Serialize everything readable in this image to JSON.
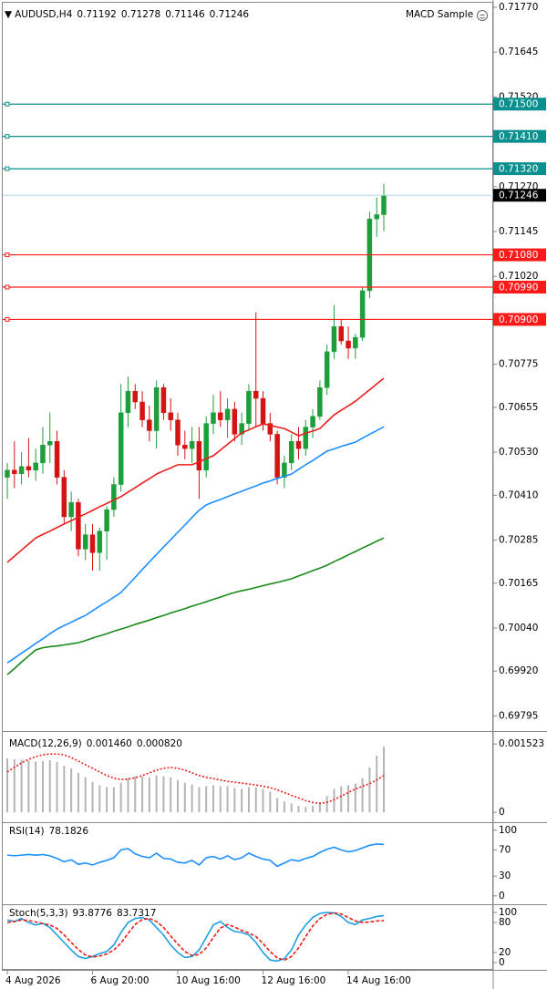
{
  "chart_data": [
    {
      "type": "candlestick",
      "title": "AUDUSD,H4",
      "expert": "MACD Sample",
      "categories": [
        "4 Aug 2026",
        null,
        null,
        null,
        null,
        null,
        null,
        null,
        null,
        null,
        null,
        null,
        "6 Aug 20:00",
        null,
        null,
        null,
        null,
        null,
        null,
        null,
        null,
        null,
        null,
        null,
        "10 Aug 16:00",
        null,
        null,
        null,
        null,
        null,
        null,
        null,
        null,
        null,
        null,
        null,
        "12 Aug 16:00",
        null,
        null,
        null,
        null,
        null,
        null,
        null,
        null,
        null,
        null,
        null,
        "14 Aug 16:00",
        null,
        null,
        null,
        null,
        null
      ],
      "open": [
        0.7046,
        0.7048,
        0.7047,
        0.7049,
        0.7048,
        0.705,
        0.7055,
        0.7056,
        0.7046,
        0.7035,
        0.7039,
        0.7026,
        0.703,
        0.7025,
        0.7031,
        0.7037,
        0.7044,
        0.7064,
        0.707,
        0.7067,
        0.7062,
        0.7059,
        0.7071,
        0.7064,
        0.7062,
        0.7055,
        0.7054,
        0.7056,
        0.7048,
        0.7061,
        0.7064,
        0.7062,
        0.7065,
        0.7058,
        0.7061,
        0.707,
        0.7068,
        0.7061,
        0.7058,
        0.7046,
        0.705,
        0.7056,
        0.7054,
        0.706,
        0.7063,
        0.7071,
        0.7081,
        0.7088,
        0.7084,
        0.7082,
        0.7085,
        0.7098,
        0.7118,
        0.71192
      ],
      "high": [
        0.705,
        0.7056,
        0.7053,
        0.7057,
        0.7054,
        0.706,
        0.7064,
        0.7059,
        0.7048,
        0.7042,
        0.704,
        0.7033,
        0.7033,
        0.7032,
        0.7038,
        0.7046,
        0.7072,
        0.7074,
        0.7072,
        0.707,
        0.7066,
        0.7073,
        0.7072,
        0.7068,
        0.7064,
        0.7059,
        0.706,
        0.706,
        0.7063,
        0.7069,
        0.707,
        0.7068,
        0.7067,
        0.7064,
        0.7072,
        0.7092,
        0.707,
        0.7064,
        0.7059,
        0.7052,
        0.7058,
        0.706,
        0.7062,
        0.7065,
        0.7073,
        0.7083,
        0.7094,
        0.709,
        0.7088,
        0.7086,
        0.7099,
        0.712,
        0.7124,
        0.71278
      ],
      "low": [
        0.704,
        0.7043,
        0.7044,
        0.7046,
        0.7045,
        0.7047,
        0.705,
        0.7044,
        0.7033,
        0.7031,
        0.7024,
        0.7023,
        0.702,
        0.702,
        0.7023,
        0.7035,
        0.7042,
        0.706,
        0.7065,
        0.706,
        0.7056,
        0.7054,
        0.7062,
        0.7059,
        0.7052,
        0.7051,
        0.705,
        0.704,
        0.7046,
        0.7058,
        0.706,
        0.7057,
        0.7056,
        0.7055,
        0.7059,
        0.706,
        0.7059,
        0.7056,
        0.7044,
        0.7043,
        0.7048,
        0.7051,
        0.7052,
        0.7057,
        0.7062,
        0.7069,
        0.7079,
        0.7083,
        0.7079,
        0.7079,
        0.7084,
        0.7096,
        0.7113,
        0.71146
      ],
      "close": [
        0.7048,
        0.7047,
        0.7049,
        0.7048,
        0.705,
        0.7055,
        0.7056,
        0.7046,
        0.7035,
        0.7039,
        0.7026,
        0.703,
        0.7025,
        0.7031,
        0.7037,
        0.7044,
        0.7064,
        0.707,
        0.7067,
        0.7062,
        0.7059,
        0.7071,
        0.7064,
        0.7062,
        0.7055,
        0.7054,
        0.7056,
        0.7048,
        0.7061,
        0.7064,
        0.7062,
        0.7065,
        0.7058,
        0.7061,
        0.707,
        0.7068,
        0.7061,
        0.7058,
        0.7046,
        0.705,
        0.7056,
        0.7054,
        0.706,
        0.7063,
        0.7071,
        0.7081,
        0.7088,
        0.7084,
        0.7082,
        0.7085,
        0.7098,
        0.7118,
        0.71192,
        0.71246
      ],
      "up_color": "#1e9e3a",
      "down_color": "#d41414",
      "price_line_color": "#b8d4ee",
      "price_label_color": "#000000",
      "series": [
        {
          "color": "#e8201c",
          "values": [
            0.70223,
            0.7024,
            0.70257,
            0.70274,
            0.70291,
            0.70301,
            0.7031,
            0.7032,
            0.7033,
            0.70339,
            0.70349,
            0.70358,
            0.70368,
            0.70378,
            0.70387,
            0.70397,
            0.70406,
            0.70419,
            0.70431,
            0.70444,
            0.70456,
            0.70469,
            0.70478,
            0.70486,
            0.70495,
            0.70495,
            0.70495,
            0.70503,
            0.70512,
            0.7052,
            0.70536,
            0.70552,
            0.70568,
            0.70584,
            0.70592,
            0.70601,
            0.70609,
            0.70605,
            0.706,
            0.70596,
            0.70586,
            0.70576,
            0.70583,
            0.70589,
            0.70596,
            0.70615,
            0.70634,
            0.70647,
            0.70659,
            0.70672,
            0.70688,
            0.70704,
            0.7072,
            0.70736
          ]
        },
        {
          "color": "#1e8fff",
          "values": [
            0.69943,
            0.69956,
            0.6997,
            0.69983,
            0.69997,
            0.7001,
            0.70024,
            0.70037,
            0.70047,
            0.70056,
            0.70066,
            0.70075,
            0.70088,
            0.70101,
            0.70113,
            0.70126,
            0.70139,
            0.7016,
            0.70181,
            0.70203,
            0.70224,
            0.70245,
            0.70266,
            0.70286,
            0.70307,
            0.70327,
            0.70348,
            0.70368,
            0.70383,
            0.70391,
            0.70398,
            0.70406,
            0.70414,
            0.70421,
            0.70429,
            0.70436,
            0.70444,
            0.7045,
            0.70457,
            0.70463,
            0.70469,
            0.70482,
            0.70495,
            0.70507,
            0.7052,
            0.70533,
            0.70539,
            0.70546,
            0.70552,
            0.70558,
            0.70569,
            0.7058,
            0.7059,
            0.70601
          ]
        },
        {
          "color": "#1a8a1a",
          "values": [
            0.6991,
            0.69927,
            0.69945,
            0.69962,
            0.69979,
            0.69985,
            0.69988,
            0.6999,
            0.69993,
            0.69996,
            0.69999,
            0.70005,
            0.70012,
            0.70018,
            0.70024,
            0.70031,
            0.70037,
            0.70043,
            0.7005,
            0.70056,
            0.70062,
            0.70069,
            0.70075,
            0.70082,
            0.70088,
            0.70094,
            0.70101,
            0.70107,
            0.70113,
            0.7012,
            0.70126,
            0.70133,
            0.70139,
            0.70144,
            0.70148,
            0.70153,
            0.70158,
            0.70163,
            0.70167,
            0.70172,
            0.70177,
            0.70185,
            0.70192,
            0.702,
            0.70207,
            0.70215,
            0.70225,
            0.70234,
            0.70244,
            0.70253,
            0.70263,
            0.70272,
            0.70282,
            0.70291
          ]
        }
      ],
      "levels": [
        {
          "value": 0.715,
          "label": "0.71500",
          "color": "#0a8f8f"
        },
        {
          "value": 0.7141,
          "label": "0.71410",
          "color": "#0a8f8f"
        },
        {
          "value": 0.7132,
          "label": "0.71320",
          "color": "#0a8f8f"
        },
        {
          "value": 0.7108,
          "label": "0.71080",
          "color": "#ff1a1a"
        },
        {
          "value": 0.7099,
          "label": "0.70990",
          "color": "#ff1a1a"
        },
        {
          "value": 0.709,
          "label": "0.70900",
          "color": "#ff1a1a"
        }
      ],
      "ylim": [
        0.69758,
        0.7178
      ],
      "yticks": [
        {
          "value": 0.7177,
          "label": "0.71770"
        },
        0.71645,
        {
          "value": 0.7152,
          "label": "0.71520"
        },
        {
          "value": 0.7127,
          "label": "0.71270"
        },
        0.71145,
        {
          "value": 0.7102,
          "label": "0.71020"
        },
        0.70775,
        0.70655,
        {
          "value": 0.7053,
          "label": "0.70530"
        },
        {
          "value": 0.7041,
          "label": "0.70410"
        },
        0.70285,
        0.70165,
        {
          "value": 0.7004,
          "label": "0.70040"
        },
        {
          "value": 0.6992,
          "label": "0.69920"
        },
        0.69795
      ]
    },
    {
      "type": "macd",
      "title": "MACD(12,26,9)",
      "header": [
        "0.001460",
        "0.000820"
      ],
      "series": [
        {
          "color": "#b4b4b4",
          "values": [
            0.0012,
            0.00118,
            0.00117,
            0.00115,
            0.00113,
            0.00114,
            0.00116,
            0.00112,
            0.00104,
            0.00098,
            0.00088,
            0.00078,
            0.00068,
            0.0006,
            0.00056,
            0.00056,
            0.00066,
            0.00076,
            0.0008,
            0.0008,
            0.00078,
            0.00082,
            0.0008,
            0.00078,
            0.00072,
            0.00066,
            0.00062,
            0.00056,
            0.00058,
            0.0006,
            0.00058,
            0.00058,
            0.00054,
            0.00052,
            0.00056,
            0.00056,
            0.00052,
            0.00046,
            0.00032,
            0.00024,
            0.0002,
            0.00014,
            0.00012,
            0.00014,
            0.00022,
            0.00036,
            0.00052,
            0.00058,
            0.0006,
            0.00064,
            0.00076,
            0.001,
            0.00126,
            0.00146
          ]
        },
        {
          "color": "#e8201c",
          "style": "dotted",
          "values": [
            0.0009,
            0.001,
            0.0011,
            0.00118,
            0.00124,
            0.00128,
            0.0013,
            0.0013,
            0.00128,
            0.00122,
            0.00114,
            0.00106,
            0.00098,
            0.0009,
            0.00082,
            0.00076,
            0.00073,
            0.00074,
            0.00077,
            0.00082,
            0.00088,
            0.00094,
            0.00098,
            0.001,
            0.00098,
            0.00094,
            0.00088,
            0.00082,
            0.00078,
            0.00075,
            0.00072,
            0.00069,
            0.00067,
            0.00065,
            0.00063,
            0.00061,
            0.00058,
            0.00055,
            0.0005,
            0.00044,
            0.00038,
            0.00032,
            0.00026,
            0.00022,
            0.0002,
            0.00022,
            0.00028,
            0.00036,
            0.00044,
            0.00052,
            0.00058,
            0.00064,
            0.00072,
            0.00082
          ]
        }
      ],
      "ylim": [
        -0.00018,
        0.00175
      ],
      "yticks": [
        0.001523,
        0
      ]
    },
    {
      "type": "line",
      "title": "RSI(14)",
      "series": [
        {
          "color": "#1e8fff",
          "values": [
            62,
            61,
            62,
            63,
            62,
            63,
            61,
            57,
            52,
            55,
            48,
            50,
            47,
            51,
            54,
            58,
            70,
            72,
            64,
            60,
            58,
            65,
            57,
            56,
            51,
            50,
            54,
            47,
            58,
            60,
            56,
            61,
            55,
            58,
            65,
            60,
            56,
            54,
            45,
            50,
            55,
            53,
            57,
            60,
            66,
            71,
            74,
            70,
            67,
            69,
            73,
            77,
            79,
            78.1826
          ]
        }
      ],
      "ylim": [
        -10,
        108
      ],
      "yticks": [
        100,
        70,
        30,
        0
      ]
    },
    {
      "type": "line",
      "title": "Stoch(5,3,3)",
      "series": [
        {
          "color": "#1e9fe0",
          "values": [
            85,
            82,
            88,
            80,
            75,
            78,
            70,
            55,
            40,
            25,
            12,
            8,
            12,
            18,
            22,
            35,
            60,
            80,
            88,
            90,
            85,
            70,
            55,
            35,
            20,
            10,
            12,
            25,
            50,
            75,
            82,
            70,
            62,
            60,
            55,
            40,
            20,
            5,
            3,
            8,
            25,
            55,
            75,
            90,
            98,
            100,
            99,
            92,
            80,
            76,
            85,
            88,
            92,
            93.8776
          ]
        },
        {
          "color": "#e8201c",
          "style": "dashed",
          "values": [
            80,
            82,
            85,
            84,
            81,
            78,
            75,
            68,
            55,
            40,
            26,
            15,
            11,
            13,
            17,
            25,
            39,
            58,
            76,
            86,
            88,
            82,
            70,
            53,
            37,
            22,
            14,
            16,
            29,
            50,
            69,
            76,
            71,
            64,
            59,
            52,
            38,
            22,
            9,
            5,
            12,
            29,
            52,
            73,
            88,
            96,
            99,
            97,
            90,
            83,
            80,
            81,
            83,
            83.7317
          ]
        }
      ],
      "ylim": [
        -11,
        111
      ],
      "yticks": [
        100,
        80,
        20,
        0
      ]
    }
  ]
}
